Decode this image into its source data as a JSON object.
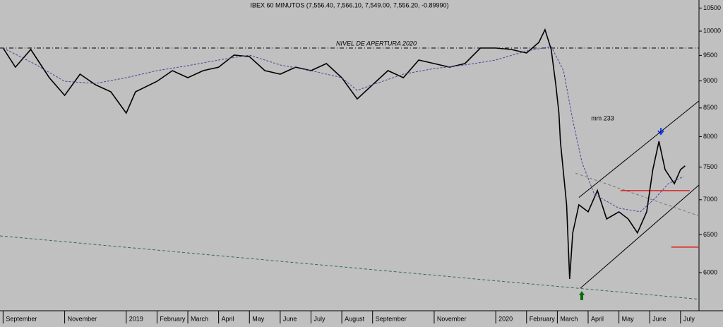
{
  "chart_data": {
    "type": "line",
    "title": "IBEX 60 MINUTOS (7,556.40, 7,566.10, 7,549.00, 7,556.20, -0.89990)",
    "log_scale": true,
    "grid": false,
    "xlim": [
      -0.1,
      22.6
    ],
    "ylim": [
      5535,
      10680
    ],
    "yticks": [
      6000,
      6500,
      7000,
      7500,
      8000,
      8500,
      9000,
      9500,
      10000,
      10500
    ],
    "xticks": [
      {
        "value": 0,
        "label": "September"
      },
      {
        "value": 2,
        "label": "November"
      },
      {
        "value": 4,
        "label": "2019"
      },
      {
        "value": 5,
        "label": "February"
      },
      {
        "value": 6,
        "label": "March"
      },
      {
        "value": 7,
        "label": "April"
      },
      {
        "value": 8,
        "label": "May"
      },
      {
        "value": 9,
        "label": "June"
      },
      {
        "value": 10,
        "label": "July"
      },
      {
        "value": 11,
        "label": "August"
      },
      {
        "value": 12,
        "label": "September"
      },
      {
        "value": 14,
        "label": "November"
      },
      {
        "value": 16,
        "label": "2020"
      },
      {
        "value": 17,
        "label": "February"
      },
      {
        "value": 18,
        "label": "March"
      },
      {
        "value": 19,
        "label": "April"
      },
      {
        "value": 20,
        "label": "May"
      },
      {
        "value": 21,
        "label": "June"
      },
      {
        "value": 22,
        "label": "July"
      }
    ],
    "series": [
      {
        "color": "#000000",
        "x": [
          0,
          0.4,
          0.9,
          1.5,
          2.0,
          2.5,
          3.0,
          3.5,
          4.0,
          4.3,
          5.0,
          5.5,
          6.0,
          6.5,
          7.0,
          7.5,
          8.0,
          8.5,
          9.0,
          9.5,
          10.0,
          10.5,
          11.0,
          11.5,
          12.0,
          12.5,
          13.0,
          13.5,
          14.0,
          14.5,
          15.0,
          15.5,
          16.0,
          16.5,
          17.0,
          17.4,
          17.6,
          17.8,
          17.95,
          18.05,
          18.1,
          18.2,
          18.3,
          18.4,
          18.5,
          18.7,
          19.0,
          19.3,
          19.6,
          20.0,
          20.3,
          20.6,
          20.9,
          21.1,
          21.3,
          21.5,
          21.8,
          22.0,
          22.15
        ],
        "values": [
          9648,
          9266,
          9619,
          9062,
          8730,
          9130,
          8927,
          8795,
          8408,
          8795,
          8993,
          9198,
          9062,
          9198,
          9266,
          9505,
          9476,
          9198,
          9130,
          9266,
          9198,
          9336,
          9062,
          8663,
          8927,
          9198,
          9062,
          9406,
          9336,
          9266,
          9336,
          9648,
          9648,
          9619,
          9548,
          9764,
          10030,
          9619,
          8927,
          8408,
          7920,
          7405,
          6925,
          5920,
          6526,
          6925,
          6824,
          7137,
          6721,
          6824,
          6721,
          6526,
          6824,
          7460,
          7920,
          7460,
          7241,
          7460,
          7520
        ]
      },
      {
        "name": "mm 233",
        "color": "#5a3a9a",
        "dashed": true,
        "x": [
          0,
          1,
          2,
          3,
          4,
          5,
          6,
          7,
          8,
          9,
          10,
          11,
          11.5,
          12,
          13,
          14,
          15,
          16,
          17,
          17.8,
          18.2,
          18.5,
          18.8,
          19.2,
          20,
          20.7,
          21.2,
          21.6,
          22.1
        ],
        "values": [
          9648,
          9336,
          8993,
          8952,
          9062,
          9198,
          9295,
          9406,
          9505,
          9308,
          9198,
          9062,
          8821,
          8927,
          9130,
          9239,
          9308,
          9406,
          9590,
          9677,
          9198,
          8283,
          7574,
          7082,
          6876,
          6824,
          7033,
          7241,
          7353
        ]
      }
    ],
    "reference_lines": [
      {
        "label": "NIVEL DE APERTURA 2020",
        "value": 9648,
        "color": "#000000"
      }
    ],
    "segments": [
      {
        "x": [
          18.7,
          22.6
        ],
        "values": [
          7033,
          8627
        ],
        "color": "#000000"
      },
      {
        "x": [
          18.75,
          22.6
        ],
        "values": [
          5806,
          7221
        ],
        "color": "#000000"
      },
      {
        "x": [
          -0.1,
          22.6
        ],
        "values": [
          6485,
          5672
        ],
        "color": "#2f6f4f",
        "dashed": true
      },
      {
        "x": [
          18.59,
          22.6
        ],
        "values": [
          7405,
          6764
        ],
        "color": "#777777",
        "dashed": true
      },
      {
        "x": [
          20.05,
          22.3
        ],
        "values": [
          7137,
          7137
        ],
        "color": "#e02020"
      },
      {
        "x": [
          21.7,
          22.6
        ],
        "values": [
          6333,
          6333
        ],
        "color": "#e02020"
      }
    ]
  }
}
